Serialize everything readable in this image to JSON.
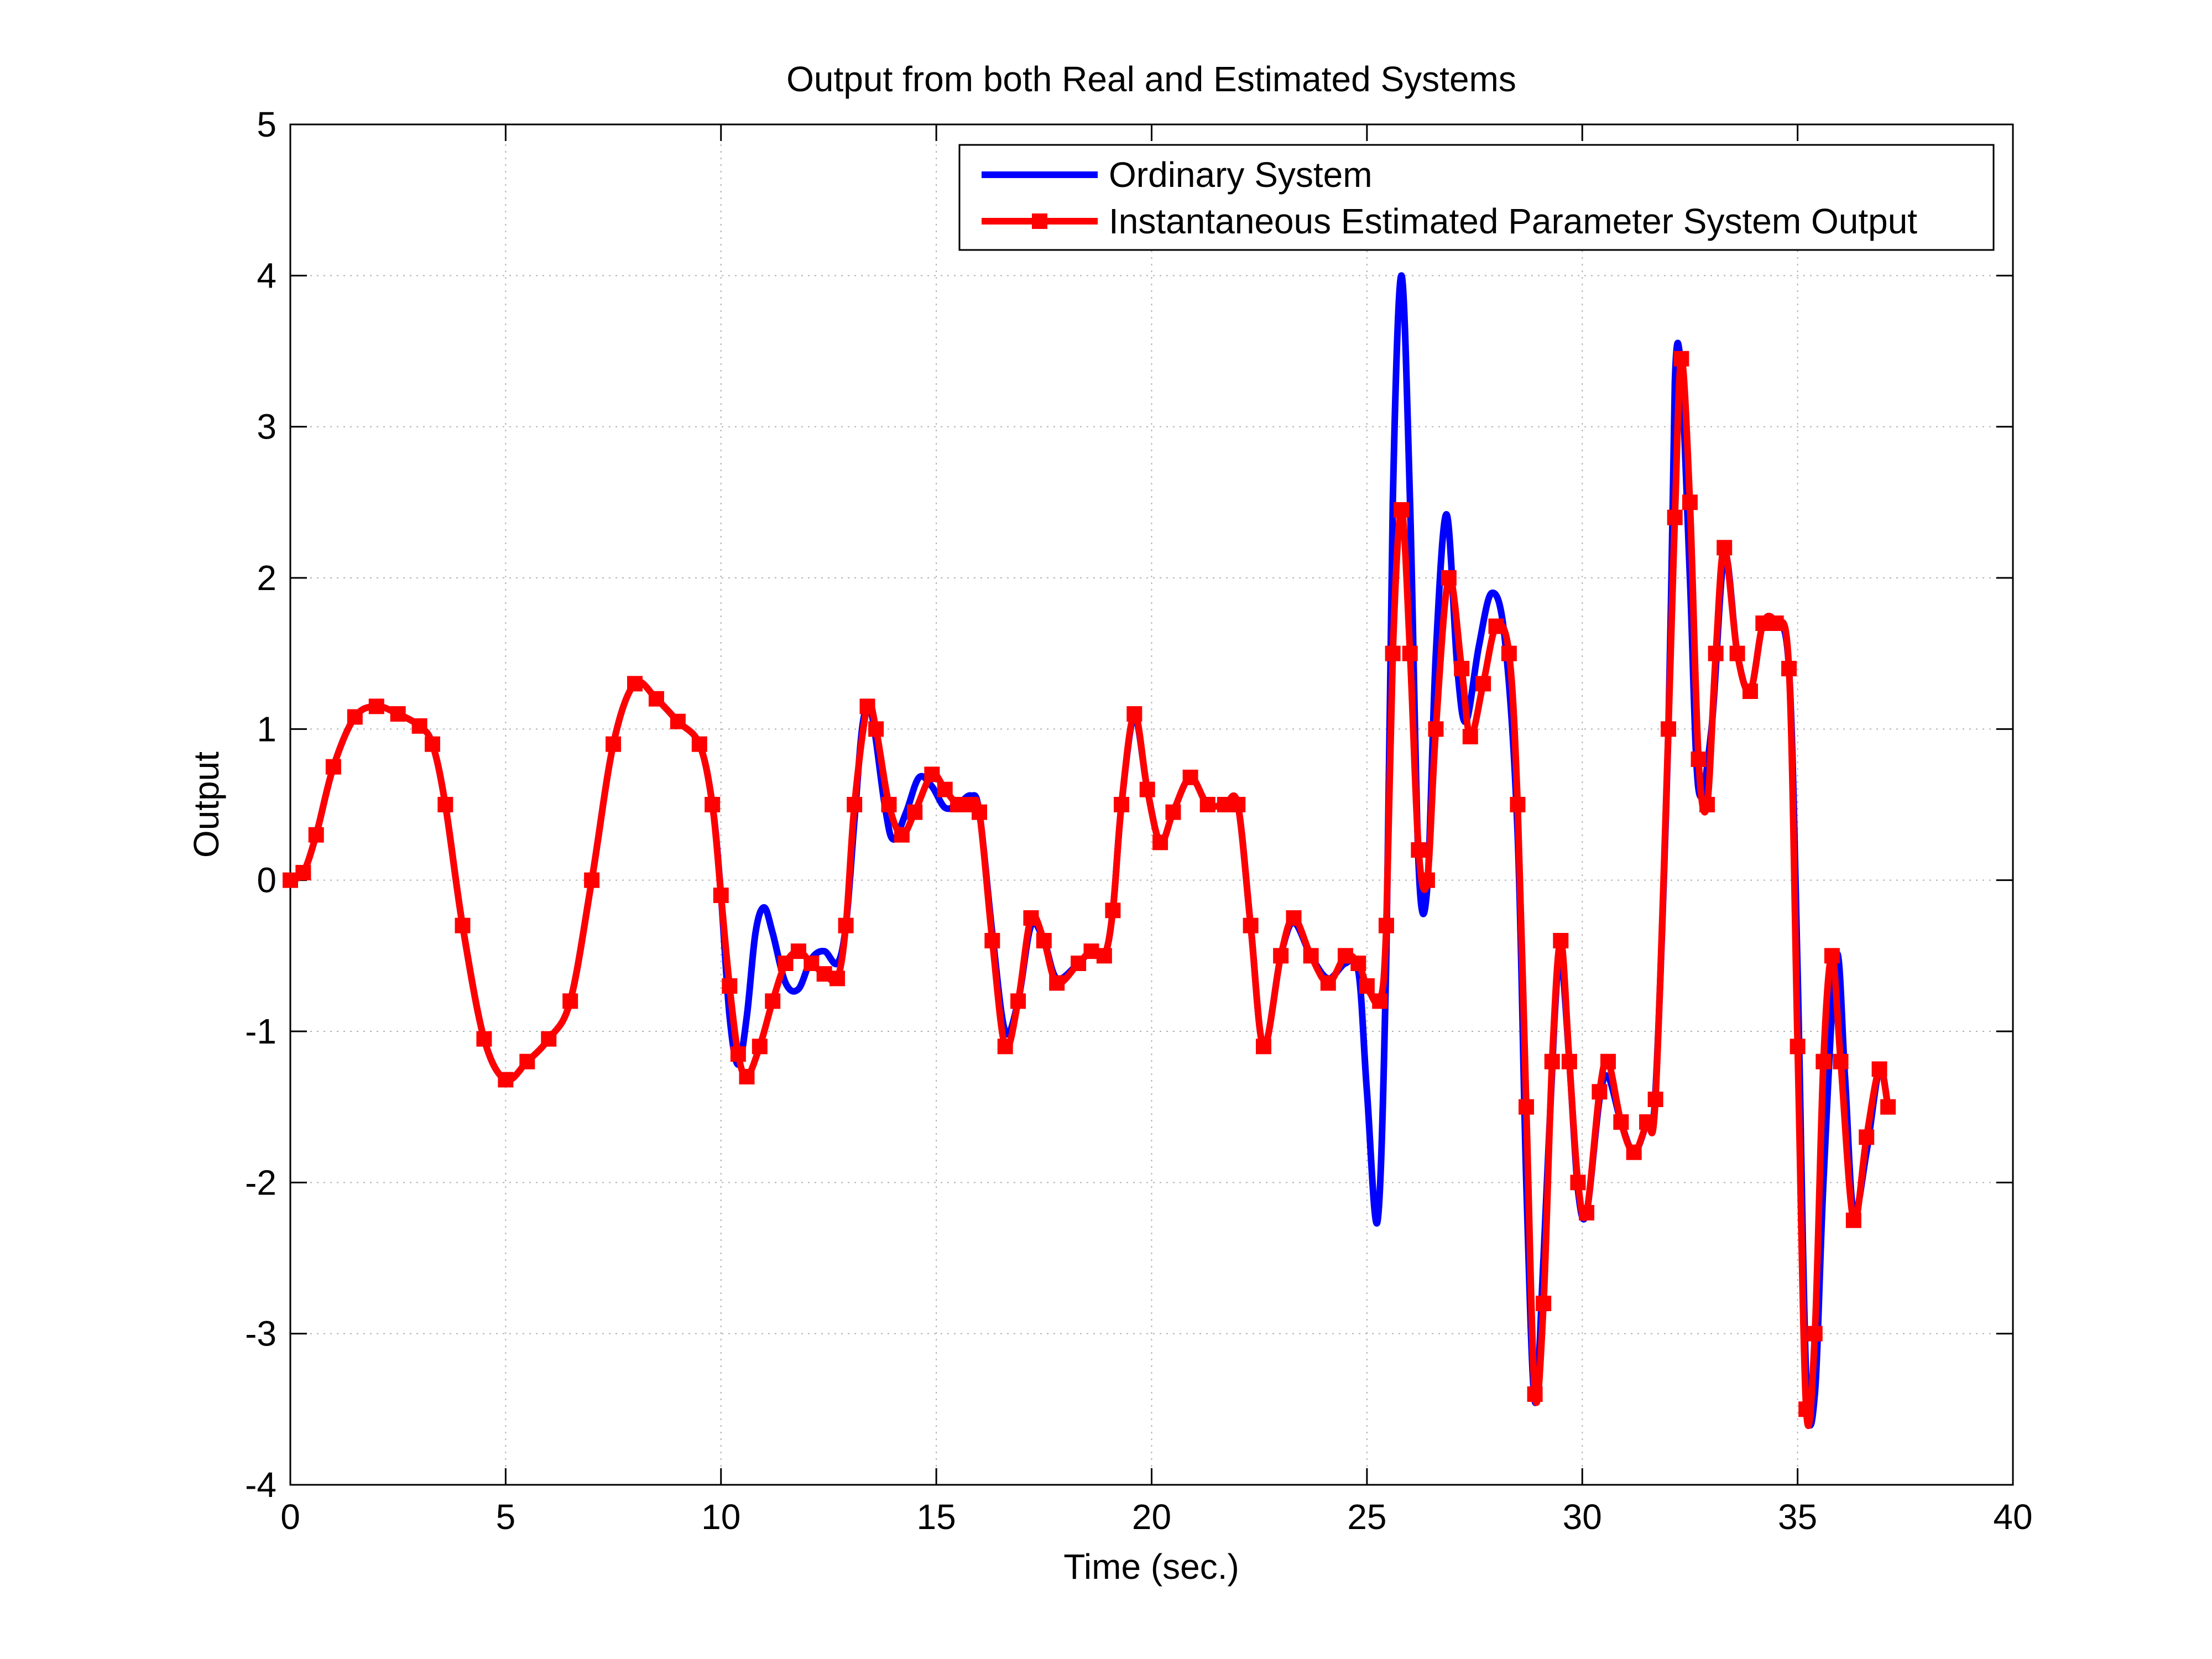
{
  "chart_data": {
    "type": "line",
    "title": "Output from both Real and Estimated Systems",
    "xlabel": "Time (sec.)",
    "ylabel": "Output",
    "xlim": [
      0,
      40
    ],
    "ylim": [
      -4,
      5
    ],
    "xticks": [
      0,
      5,
      10,
      15,
      20,
      25,
      30,
      35,
      40
    ],
    "yticks": [
      -4,
      -3,
      -2,
      -1,
      0,
      1,
      2,
      3,
      4,
      5
    ],
    "grid": true,
    "legend_position": "top-right",
    "series": [
      {
        "name": "Ordinary System",
        "color": "#0000ff",
        "marker": "none",
        "points": [
          [
            0,
            0
          ],
          [
            0.3,
            0.05
          ],
          [
            0.6,
            0.3
          ],
          [
            1.0,
            0.75
          ],
          [
            1.5,
            1.08
          ],
          [
            2.0,
            1.15
          ],
          [
            2.5,
            1.1
          ],
          [
            3.0,
            1.02
          ],
          [
            3.3,
            0.9
          ],
          [
            3.6,
            0.5
          ],
          [
            4.0,
            -0.3
          ],
          [
            4.5,
            -1.05
          ],
          [
            5.0,
            -1.32
          ],
          [
            5.5,
            -1.2
          ],
          [
            6.0,
            -1.05
          ],
          [
            6.5,
            -0.8
          ],
          [
            7.0,
            0.0
          ],
          [
            7.5,
            0.9
          ],
          [
            8.0,
            1.3
          ],
          [
            8.5,
            1.2
          ],
          [
            9.0,
            1.05
          ],
          [
            9.5,
            0.9
          ],
          [
            9.8,
            0.5
          ],
          [
            10.0,
            -0.1
          ],
          [
            10.2,
            -0.9
          ],
          [
            10.4,
            -1.22
          ],
          [
            10.6,
            -0.9
          ],
          [
            10.8,
            -0.35
          ],
          [
            11.0,
            -0.18
          ],
          [
            11.2,
            -0.35
          ],
          [
            11.5,
            -0.68
          ],
          [
            11.8,
            -0.72
          ],
          [
            12.1,
            -0.52
          ],
          [
            12.4,
            -0.47
          ],
          [
            12.7,
            -0.55
          ],
          [
            12.9,
            -0.3
          ],
          [
            13.1,
            0.4
          ],
          [
            13.3,
            1.05
          ],
          [
            13.5,
            1.1
          ],
          [
            13.8,
            0.5
          ],
          [
            14.0,
            0.27
          ],
          [
            14.3,
            0.45
          ],
          [
            14.6,
            0.68
          ],
          [
            14.9,
            0.62
          ],
          [
            15.2,
            0.48
          ],
          [
            15.5,
            0.5
          ],
          [
            15.8,
            0.56
          ],
          [
            16.0,
            0.45
          ],
          [
            16.3,
            -0.35
          ],
          [
            16.6,
            -1.0
          ],
          [
            16.9,
            -0.8
          ],
          [
            17.2,
            -0.3
          ],
          [
            17.5,
            -0.4
          ],
          [
            17.8,
            -0.65
          ],
          [
            18.3,
            -0.55
          ],
          [
            18.6,
            -0.47
          ],
          [
            18.9,
            -0.5
          ],
          [
            19.1,
            -0.2
          ],
          [
            19.3,
            0.5
          ],
          [
            19.6,
            1.08
          ],
          [
            19.9,
            0.6
          ],
          [
            20.2,
            0.25
          ],
          [
            20.5,
            0.45
          ],
          [
            20.9,
            0.68
          ],
          [
            21.3,
            0.5
          ],
          [
            21.7,
            0.5
          ],
          [
            22.0,
            0.5
          ],
          [
            22.3,
            -0.3
          ],
          [
            22.6,
            -1.1
          ],
          [
            23.0,
            -0.5
          ],
          [
            23.3,
            -0.28
          ],
          [
            23.7,
            -0.5
          ],
          [
            24.1,
            -0.65
          ],
          [
            24.5,
            -0.55
          ],
          [
            24.8,
            -0.6
          ],
          [
            25.0,
            -1.4
          ],
          [
            25.25,
            -2.25
          ],
          [
            25.45,
            -0.5
          ],
          [
            25.6,
            2.5
          ],
          [
            25.8,
            4.0
          ],
          [
            26.0,
            2.5
          ],
          [
            26.2,
            0.1
          ],
          [
            26.4,
            -0.05
          ],
          [
            26.6,
            1.5
          ],
          [
            26.85,
            2.42
          ],
          [
            27.1,
            1.4
          ],
          [
            27.3,
            1.05
          ],
          [
            27.6,
            1.55
          ],
          [
            27.9,
            1.9
          ],
          [
            28.2,
            1.6
          ],
          [
            28.5,
            0.3
          ],
          [
            28.7,
            -2.0
          ],
          [
            28.9,
            -3.45
          ],
          [
            29.1,
            -2.5
          ],
          [
            29.35,
            -0.95
          ],
          [
            29.5,
            -0.5
          ],
          [
            29.7,
            -1.2
          ],
          [
            29.9,
            -2.05
          ],
          [
            30.1,
            -2.2
          ],
          [
            30.4,
            -1.45
          ],
          [
            30.6,
            -1.3
          ],
          [
            30.9,
            -1.6
          ],
          [
            31.2,
            -1.8
          ],
          [
            31.5,
            -1.6
          ],
          [
            31.7,
            -1.4
          ],
          [
            32.0,
            1.0
          ],
          [
            32.15,
            3.3
          ],
          [
            32.3,
            3.35
          ],
          [
            32.5,
            2.0
          ],
          [
            32.7,
            0.6
          ],
          [
            33.0,
            1.0
          ],
          [
            33.3,
            2.15
          ],
          [
            33.6,
            1.5
          ],
          [
            33.9,
            1.25
          ],
          [
            34.2,
            1.7
          ],
          [
            34.5,
            1.7
          ],
          [
            34.8,
            1.4
          ],
          [
            35.0,
            -0.6
          ],
          [
            35.2,
            -3.3
          ],
          [
            35.4,
            -3.4
          ],
          [
            35.6,
            -2.0
          ],
          [
            35.9,
            -0.5
          ],
          [
            36.1,
            -1.3
          ],
          [
            36.3,
            -2.2
          ],
          [
            36.6,
            -1.8
          ],
          [
            36.9,
            -1.25
          ],
          [
            37.1,
            -1.5
          ]
        ]
      },
      {
        "name": "Instantaneous Estimated Parameter System Output",
        "color": "#ff0000",
        "marker": "square",
        "points": [
          [
            0,
            0
          ],
          [
            0.3,
            0.05
          ],
          [
            0.6,
            0.3
          ],
          [
            1.0,
            0.75
          ],
          [
            1.5,
            1.08
          ],
          [
            2.0,
            1.15
          ],
          [
            2.5,
            1.1
          ],
          [
            3.0,
            1.02
          ],
          [
            3.3,
            0.9
          ],
          [
            3.6,
            0.5
          ],
          [
            4.0,
            -0.3
          ],
          [
            4.5,
            -1.05
          ],
          [
            5.0,
            -1.32
          ],
          [
            5.5,
            -1.2
          ],
          [
            6.0,
            -1.05
          ],
          [
            6.5,
            -0.8
          ],
          [
            7.0,
            0.0
          ],
          [
            7.5,
            0.9
          ],
          [
            8.0,
            1.3
          ],
          [
            8.5,
            1.2
          ],
          [
            9.0,
            1.05
          ],
          [
            9.5,
            0.9
          ],
          [
            9.8,
            0.5
          ],
          [
            10.0,
            -0.1
          ],
          [
            10.2,
            -0.7
          ],
          [
            10.4,
            -1.15
          ],
          [
            10.6,
            -1.3
          ],
          [
            10.9,
            -1.1
          ],
          [
            11.2,
            -0.8
          ],
          [
            11.5,
            -0.55
          ],
          [
            11.8,
            -0.47
          ],
          [
            12.1,
            -0.55
          ],
          [
            12.4,
            -0.62
          ],
          [
            12.7,
            -0.65
          ],
          [
            12.9,
            -0.3
          ],
          [
            13.1,
            0.5
          ],
          [
            13.4,
            1.15
          ],
          [
            13.6,
            1.0
          ],
          [
            13.9,
            0.5
          ],
          [
            14.2,
            0.3
          ],
          [
            14.5,
            0.45
          ],
          [
            14.9,
            0.7
          ],
          [
            15.2,
            0.6
          ],
          [
            15.5,
            0.5
          ],
          [
            15.8,
            0.5
          ],
          [
            16.0,
            0.45
          ],
          [
            16.3,
            -0.4
          ],
          [
            16.6,
            -1.1
          ],
          [
            16.9,
            -0.8
          ],
          [
            17.2,
            -0.25
          ],
          [
            17.5,
            -0.4
          ],
          [
            17.8,
            -0.68
          ],
          [
            18.3,
            -0.55
          ],
          [
            18.6,
            -0.47
          ],
          [
            18.9,
            -0.5
          ],
          [
            19.1,
            -0.2
          ],
          [
            19.3,
            0.5
          ],
          [
            19.6,
            1.1
          ],
          [
            19.9,
            0.6
          ],
          [
            20.2,
            0.25
          ],
          [
            20.5,
            0.45
          ],
          [
            20.9,
            0.68
          ],
          [
            21.3,
            0.5
          ],
          [
            21.7,
            0.5
          ],
          [
            22.0,
            0.5
          ],
          [
            22.3,
            -0.3
          ],
          [
            22.6,
            -1.1
          ],
          [
            23.0,
            -0.5
          ],
          [
            23.3,
            -0.25
          ],
          [
            23.7,
            -0.5
          ],
          [
            24.1,
            -0.68
          ],
          [
            24.5,
            -0.5
          ],
          [
            24.8,
            -0.55
          ],
          [
            25.0,
            -0.7
          ],
          [
            25.3,
            -0.8
          ],
          [
            25.45,
            -0.3
          ],
          [
            25.6,
            1.5
          ],
          [
            25.8,
            2.45
          ],
          [
            26.0,
            1.5
          ],
          [
            26.2,
            0.2
          ],
          [
            26.4,
            0.0
          ],
          [
            26.6,
            1.0
          ],
          [
            26.9,
            2.0
          ],
          [
            27.2,
            1.4
          ],
          [
            27.4,
            0.95
          ],
          [
            27.7,
            1.3
          ],
          [
            28.0,
            1.68
          ],
          [
            28.3,
            1.5
          ],
          [
            28.5,
            0.5
          ],
          [
            28.7,
            -1.5
          ],
          [
            28.9,
            -3.4
          ],
          [
            29.1,
            -2.8
          ],
          [
            29.3,
            -1.2
          ],
          [
            29.5,
            -0.4
          ],
          [
            29.7,
            -1.2
          ],
          [
            29.9,
            -2.0
          ],
          [
            30.1,
            -2.2
          ],
          [
            30.4,
            -1.4
          ],
          [
            30.6,
            -1.2
          ],
          [
            30.9,
            -1.6
          ],
          [
            31.2,
            -1.8
          ],
          [
            31.5,
            -1.6
          ],
          [
            31.7,
            -1.45
          ],
          [
            32.0,
            1.0
          ],
          [
            32.15,
            2.4
          ],
          [
            32.3,
            3.45
          ],
          [
            32.5,
            2.5
          ],
          [
            32.7,
            0.8
          ],
          [
            32.9,
            0.5
          ],
          [
            33.1,
            1.5
          ],
          [
            33.3,
            2.2
          ],
          [
            33.6,
            1.5
          ],
          [
            33.9,
            1.25
          ],
          [
            34.2,
            1.7
          ],
          [
            34.5,
            1.7
          ],
          [
            34.8,
            1.4
          ],
          [
            35.0,
            -1.1
          ],
          [
            35.2,
            -3.5
          ],
          [
            35.4,
            -3.0
          ],
          [
            35.6,
            -1.2
          ],
          [
            35.8,
            -0.5
          ],
          [
            36.0,
            -1.2
          ],
          [
            36.3,
            -2.25
          ],
          [
            36.6,
            -1.7
          ],
          [
            36.9,
            -1.25
          ],
          [
            37.1,
            -1.5
          ]
        ]
      }
    ]
  }
}
